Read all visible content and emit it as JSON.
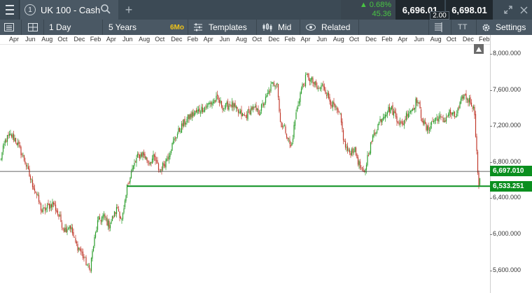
{
  "topbar": {
    "instrument_number": "1",
    "instrument_name": "UK 100 - Cash",
    "add_tab": "+",
    "change_pct": "▲ 0.68%",
    "change_abs": "45.36",
    "sell_price": "6,696.01",
    "spread": "2.00",
    "buy_price": "6,698.01"
  },
  "toolbar": {
    "interval": "1 Day",
    "range": "5 Years",
    "quick_range": "6Mo",
    "templates": "Templates",
    "price_type": "Mid",
    "related": "Related",
    "text_tool": "TT",
    "settings": "Settings"
  },
  "chart_data": {
    "type": "candlestick",
    "x_axis_labels": [
      "Apr",
      "Jun",
      "Aug",
      "Oct",
      "Dec",
      "Feb",
      "Apr",
      "Jun",
      "Aug",
      "Oct",
      "Dec",
      "Feb",
      "Apr",
      "Jun",
      "Aug",
      "Oct",
      "Dec",
      "Feb",
      "Apr",
      "Jun",
      "Aug",
      "Oct",
      "Dec",
      "Feb",
      "Apr",
      "Jun",
      "Aug",
      "Oct",
      "Dec",
      "Feb"
    ],
    "y_axis_labels": [
      "8,000.000",
      "7,600.000",
      "7,200.000",
      "6,800.000",
      "6,400.000",
      "6,000.000",
      "5,600.000"
    ],
    "ylim": [
      5350,
      8100
    ],
    "current_price_label": "6,697.010",
    "support_line_label": "6,533.251",
    "current_price": 6697.01,
    "support_line": 6533.251,
    "close_path": [
      [
        0,
        6800
      ],
      [
        8,
        7050
      ],
      [
        16,
        7100
      ],
      [
        22,
        7050
      ],
      [
        28,
        6950
      ],
      [
        36,
        6800
      ],
      [
        44,
        6600
      ],
      [
        52,
        6450
      ],
      [
        60,
        6250
      ],
      [
        68,
        6300
      ],
      [
        76,
        6350
      ],
      [
        84,
        6200
      ],
      [
        92,
        6050
      ],
      [
        100,
        6100
      ],
      [
        108,
        5900
      ],
      [
        116,
        5800
      ],
      [
        122,
        5700
      ],
      [
        128,
        5600
      ],
      [
        134,
        5900
      ],
      [
        140,
        6150
      ],
      [
        148,
        6200
      ],
      [
        156,
        6100
      ],
      [
        162,
        6200
      ],
      [
        168,
        6300
      ],
      [
        174,
        6150
      ],
      [
        178,
        6300
      ],
      [
        182,
        6550
      ],
      [
        188,
        6700
      ],
      [
        196,
        6850
      ],
      [
        204,
        6900
      ],
      [
        212,
        6800
      ],
      [
        220,
        6850
      ],
      [
        228,
        6700
      ],
      [
        236,
        6800
      ],
      [
        244,
        6950
      ],
      [
        252,
        7100
      ],
      [
        260,
        7200
      ],
      [
        270,
        7300
      ],
      [
        280,
        7350
      ],
      [
        290,
        7400
      ],
      [
        300,
        7450
      ],
      [
        310,
        7500
      ],
      [
        320,
        7400
      ],
      [
        330,
        7450
      ],
      [
        340,
        7350
      ],
      [
        350,
        7300
      ],
      [
        360,
        7400
      ],
      [
        370,
        7350
      ],
      [
        380,
        7500
      ],
      [
        388,
        7650
      ],
      [
        396,
        7700
      ],
      [
        400,
        7250
      ],
      [
        408,
        7150
      ],
      [
        416,
        6950
      ],
      [
        422,
        7300
      ],
      [
        430,
        7600
      ],
      [
        438,
        7750
      ],
      [
        446,
        7700
      ],
      [
        454,
        7600
      ],
      [
        462,
        7650
      ],
      [
        470,
        7500
      ],
      [
        478,
        7400
      ],
      [
        486,
        7300
      ],
      [
        492,
        7000
      ],
      [
        498,
        6900
      ],
      [
        506,
        6950
      ],
      [
        514,
        6750
      ],
      [
        520,
        6650
      ],
      [
        526,
        6900
      ],
      [
        534,
        7100
      ],
      [
        542,
        7250
      ],
      [
        550,
        7350
      ],
      [
        558,
        7400
      ],
      [
        566,
        7300
      ],
      [
        574,
        7200
      ],
      [
        582,
        7350
      ],
      [
        590,
        7400
      ],
      [
        596,
        7500
      ],
      [
        602,
        7300
      ],
      [
        610,
        7150
      ],
      [
        618,
        7250
      ],
      [
        626,
        7300
      ],
      [
        634,
        7250
      ],
      [
        642,
        7350
      ],
      [
        650,
        7300
      ],
      [
        656,
        7400
      ],
      [
        662,
        7550
      ],
      [
        668,
        7500
      ],
      [
        674,
        7450
      ],
      [
        678,
        7350
      ],
      [
        681,
        6900
      ],
      [
        684,
        6500
      ],
      [
        686,
        6697
      ]
    ]
  }
}
